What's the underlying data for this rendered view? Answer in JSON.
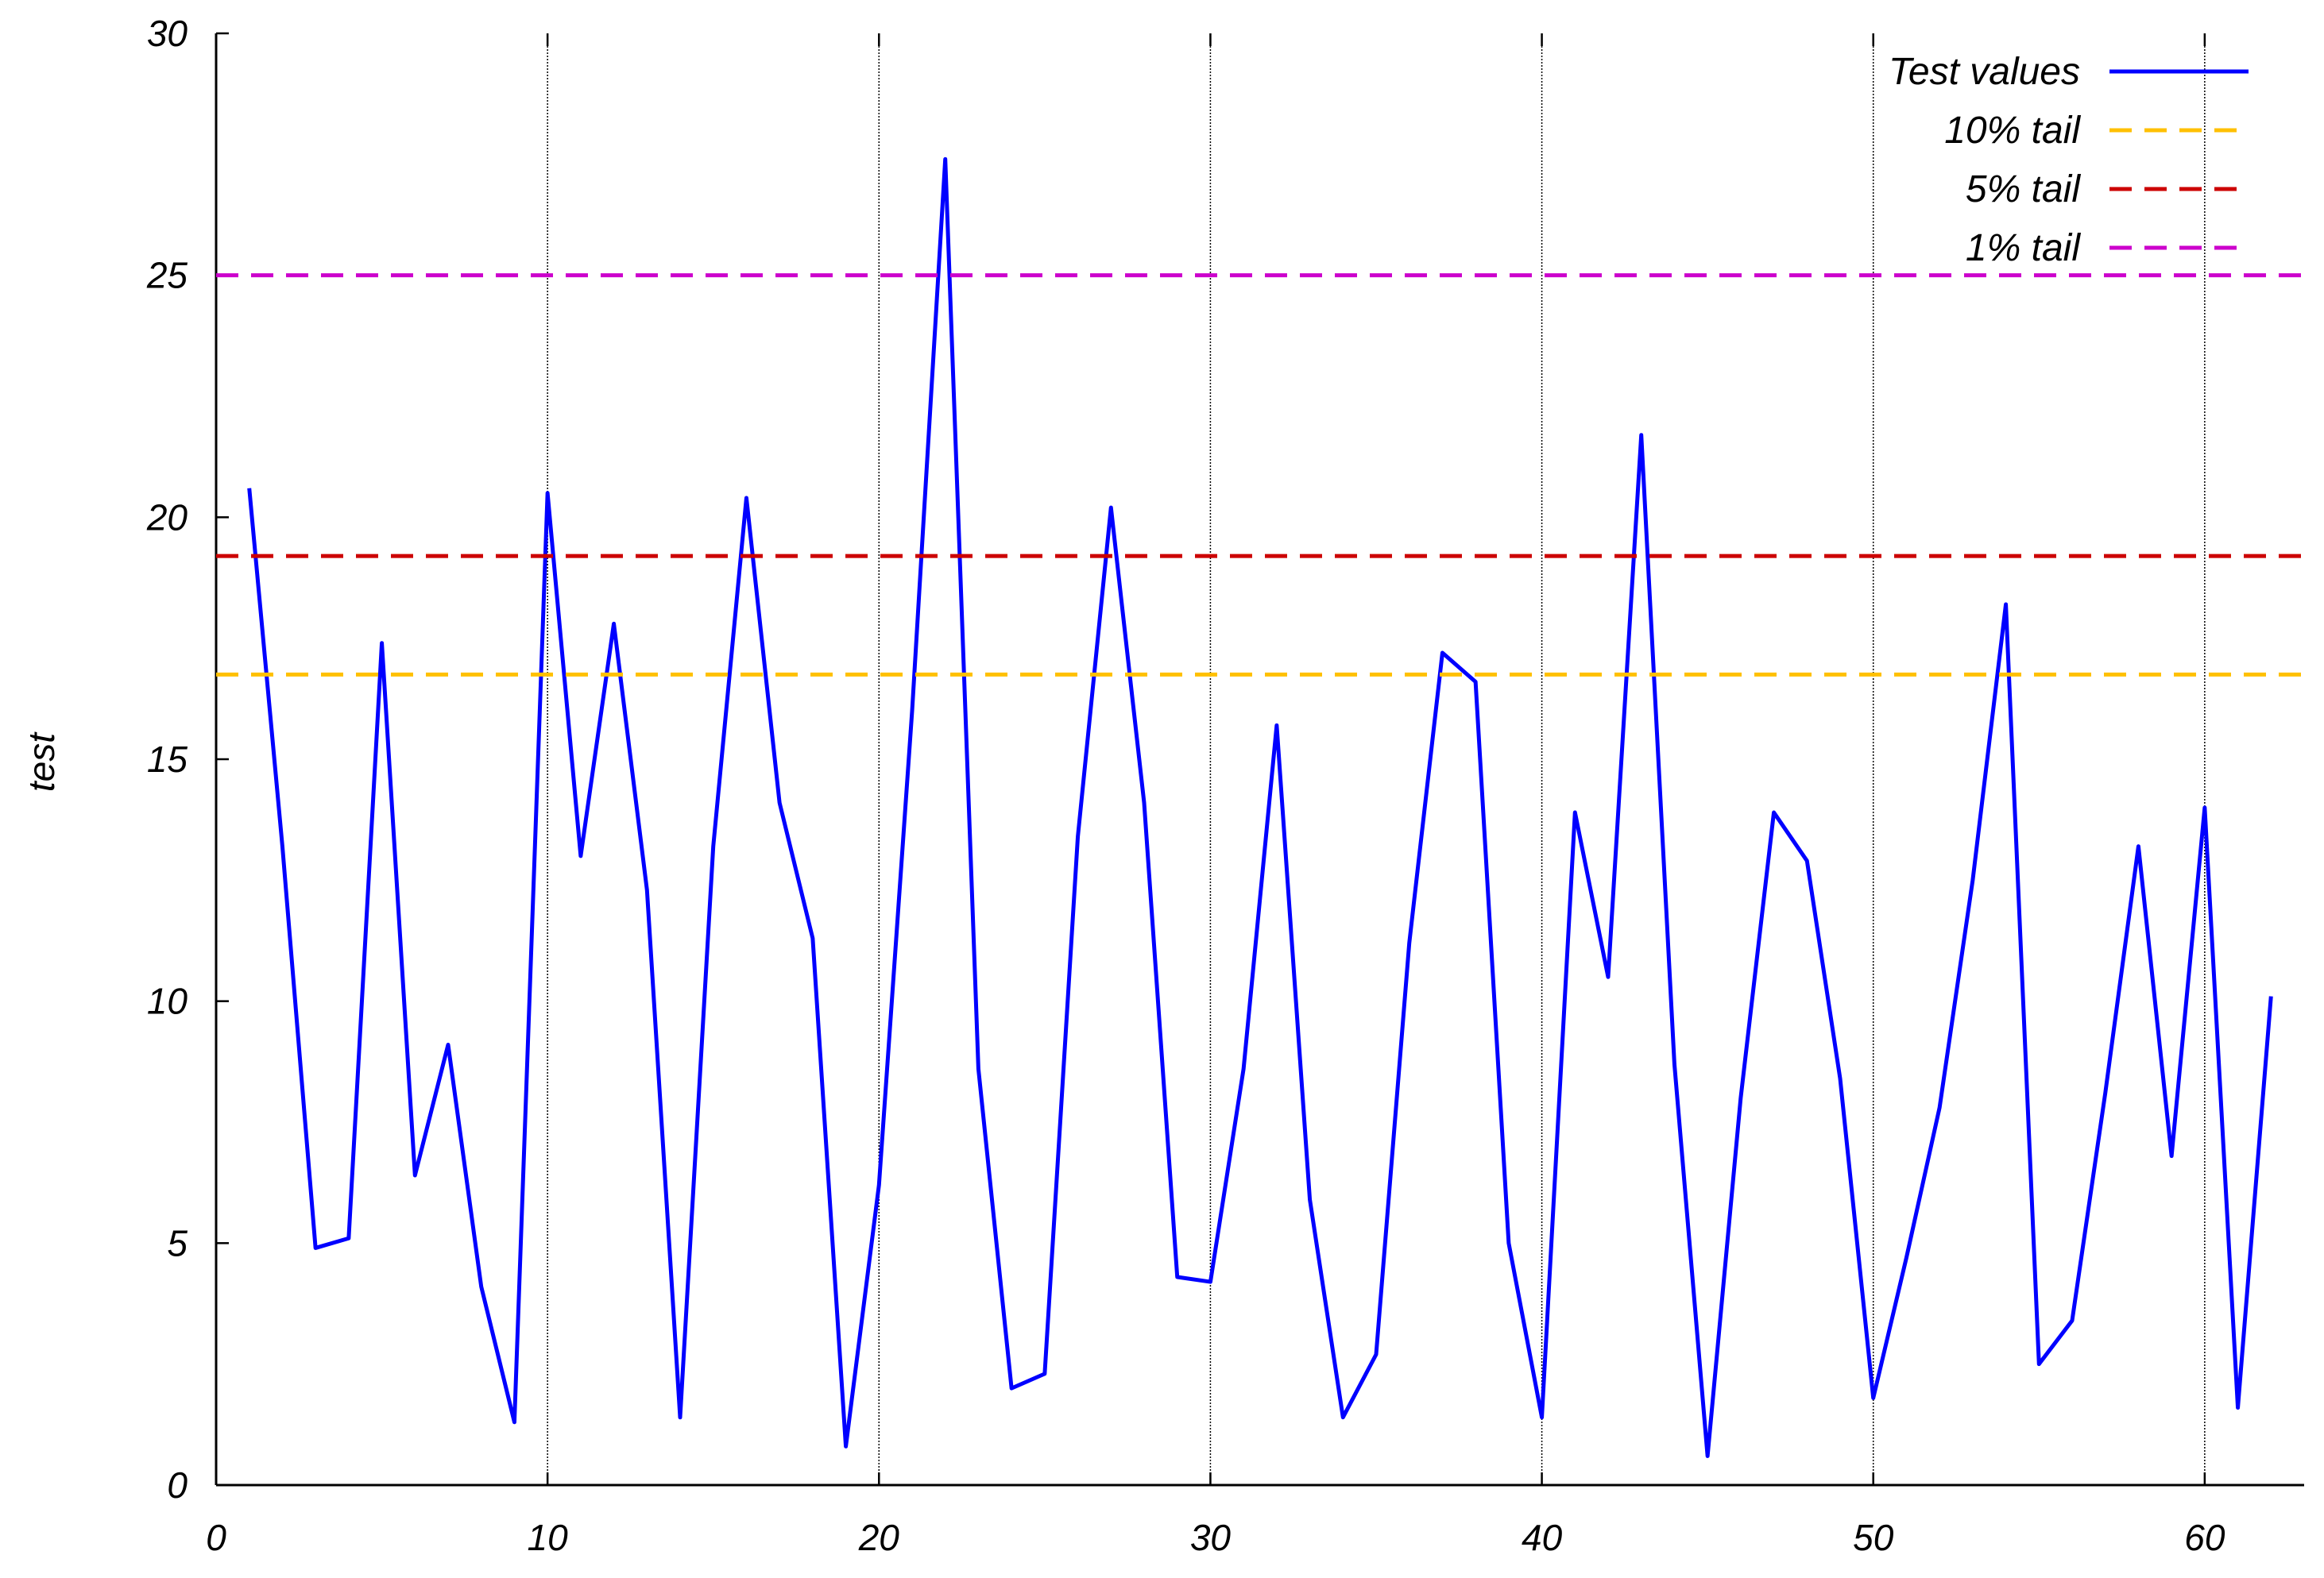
{
  "chart_data": {
    "type": "line",
    "title": "",
    "xlabel": "",
    "ylabel": "test",
    "xlim": [
      0,
      63
    ],
    "ylim": [
      0,
      30
    ],
    "xticks": [
      0,
      10,
      20,
      30,
      40,
      50,
      60
    ],
    "yticks": [
      0,
      5,
      10,
      15,
      20,
      25,
      30
    ],
    "grid": "vertical lines at x ticks",
    "legend_position": "top-right",
    "series": [
      {
        "name": "Test values",
        "color": "#0000ff",
        "style": "solid",
        "x": [
          1,
          2,
          3,
          4,
          5,
          6,
          7,
          8,
          9,
          10,
          11,
          12,
          13,
          14,
          15,
          16,
          17,
          18,
          19,
          20,
          21,
          22,
          23,
          24,
          25,
          26,
          27,
          28,
          29,
          30,
          31,
          32,
          33,
          34,
          35,
          36,
          37,
          38,
          39,
          40,
          41,
          42,
          43,
          44,
          45,
          46,
          47,
          48,
          49,
          50,
          51,
          52,
          53,
          54,
          55,
          56,
          57,
          58,
          59,
          60,
          61,
          62
        ],
        "y": [
          20.6,
          13.2,
          4.9,
          5.1,
          17.4,
          6.4,
          9.1,
          4.1,
          1.3,
          20.5,
          13.0,
          17.8,
          12.3,
          1.4,
          13.2,
          20.4,
          14.1,
          11.3,
          0.8,
          6.2,
          16.0,
          27.4,
          8.6,
          2.0,
          2.3,
          13.4,
          20.2,
          14.1,
          4.3,
          4.2,
          8.6,
          15.7,
          5.9,
          1.4,
          2.7,
          11.2,
          17.2,
          16.6,
          5.0,
          1.4,
          13.9,
          10.5,
          21.7,
          8.7,
          0.6,
          8.0,
          13.9,
          12.9,
          8.4,
          1.8,
          4.7,
          7.8,
          12.5,
          18.2,
          2.5,
          3.4,
          8.1,
          13.2,
          6.8,
          14.0,
          1.6,
          10.1
        ]
      },
      {
        "name": "10% tail",
        "color": "#ffc000",
        "style": "dashed",
        "constant": 16.75
      },
      {
        "name": "5% tail",
        "color": "#cc0000",
        "style": "dashed",
        "constant": 19.2
      },
      {
        "name": "1% tail",
        "color": "#cc00cc",
        "style": "dashed",
        "constant": 25.0
      }
    ]
  }
}
